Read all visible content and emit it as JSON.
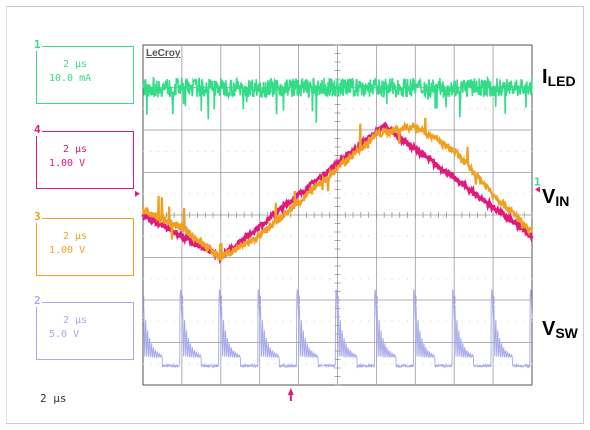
{
  "brand": "LeCroy",
  "timebase": "2 µs",
  "channels": [
    {
      "num": "1",
      "time": "2 µs",
      "scale": "10.0 mA",
      "color": "#33dd88"
    },
    {
      "num": "4",
      "time": "2 µs",
      "scale": "1.00 V",
      "color": "#e0197a"
    },
    {
      "num": "3",
      "time": "2 µs",
      "scale": "1.00 V",
      "color": "#f0a020"
    },
    {
      "num": "2",
      "time": "2 µs",
      "scale": "5.0 V",
      "color": "#a8a8ee"
    }
  ],
  "signal_labels": {
    "iled": {
      "main": "I",
      "sub": "LED"
    },
    "vin": {
      "main": "V",
      "sub": "IN"
    },
    "vsw": {
      "main": "V",
      "sub": "SW"
    }
  },
  "chart_data": {
    "type": "line",
    "grid": true,
    "divisions_x": 10,
    "divisions_y": 8,
    "series": [
      {
        "name": "1",
        "color": "#33dd88",
        "description_values": "noisy constant current",
        "x_div": [
          0,
          10
        ],
        "y_div_center": 0.8
      },
      {
        "name": "4",
        "color": "#e0197a",
        "x_div": [
          0,
          2.0,
          6.2,
          10.0
        ],
        "y_div": [
          4.0,
          3.0,
          6.1,
          3.5
        ]
      },
      {
        "name": "3",
        "color": "#f0a020",
        "x_div": [
          0,
          1.0,
          2.0,
          3.0,
          4.0,
          5.0,
          6.0,
          7.0,
          8.0,
          9.0,
          10.0
        ],
        "y_div": [
          4.1,
          3.7,
          3.0,
          3.5,
          4.3,
          5.1,
          5.9,
          6.1,
          5.5,
          4.5,
          3.6
        ]
      },
      {
        "name": "2",
        "color": "#a8a8ee",
        "description_values": "switching waveform with ringing",
        "period_div": 1.0
      }
    ],
    "markers": {
      "trigger_x_div": 3.8,
      "ch1_level_y_div": 4.6,
      "ch4_level_y_div": 4.5
    }
  }
}
